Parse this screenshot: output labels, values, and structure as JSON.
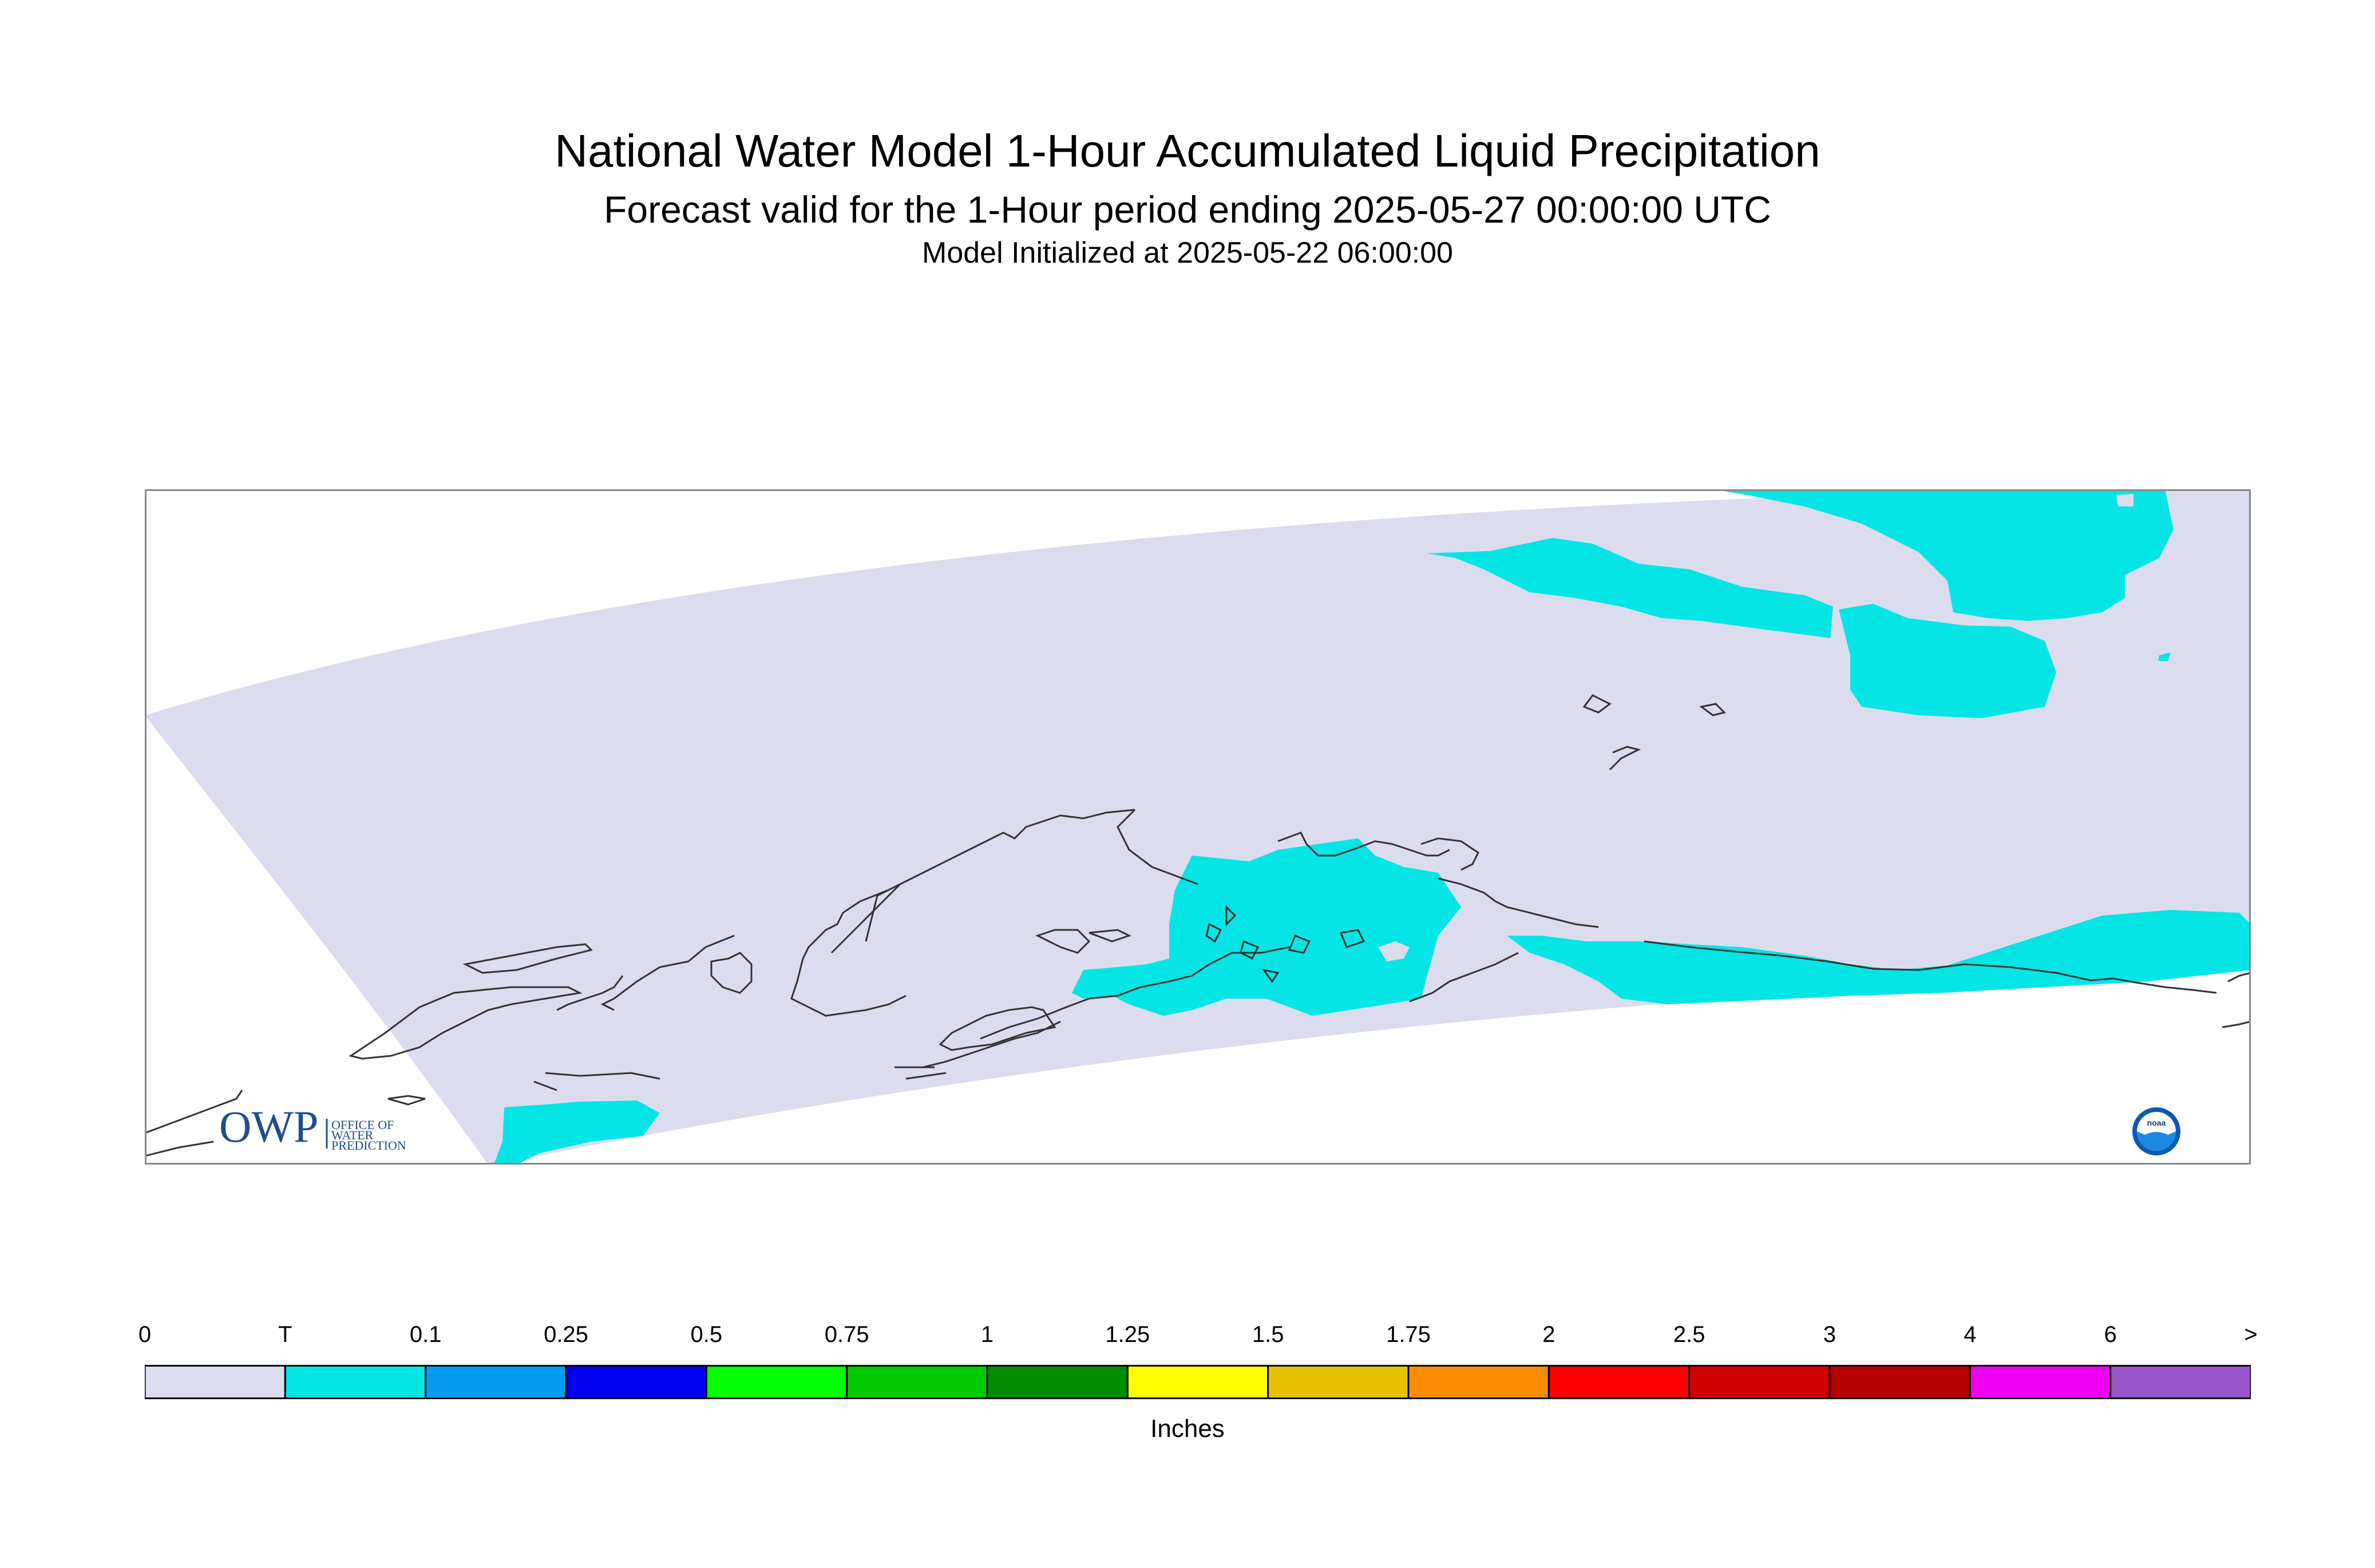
{
  "header": {
    "title": "National Water Model 1-Hour Accumulated Liquid Precipitation",
    "subtitle": "Forecast valid for the 1-Hour period ending 2025-05-27 00:00:00 UTC",
    "init": "Model Initialized at 2025-05-22 06:00:00"
  },
  "colors": {
    "domain_fill": "#dcdcef",
    "trace": "#04e6e6",
    "coastline": "#333333",
    "frame": "#888888",
    "owp_blue": "#1f4e8c"
  },
  "logos": {
    "owp_text": "OWP",
    "owp_sub1": "OFFICE OF",
    "owp_sub2": "WATER",
    "owp_sub3": "PREDICTION",
    "noaa_text": "noaa"
  },
  "legend": {
    "units": "Inches",
    "ticks": [
      "0",
      "T",
      "0.1",
      "0.25",
      "0.5",
      "0.75",
      "1",
      "1.25",
      "1.5",
      "1.75",
      "2",
      "2.5",
      "3",
      "4",
      "6",
      ">"
    ],
    "bins": [
      "#dcdcef",
      "#04e6e6",
      "#039bf0",
      "#0000f0",
      "#00ff00",
      "#00c800",
      "#008c00",
      "#ffff00",
      "#e6c300",
      "#ff8c00",
      "#ff0000",
      "#d20000",
      "#b40000",
      "#f000f0",
      "#9955c9"
    ]
  }
}
